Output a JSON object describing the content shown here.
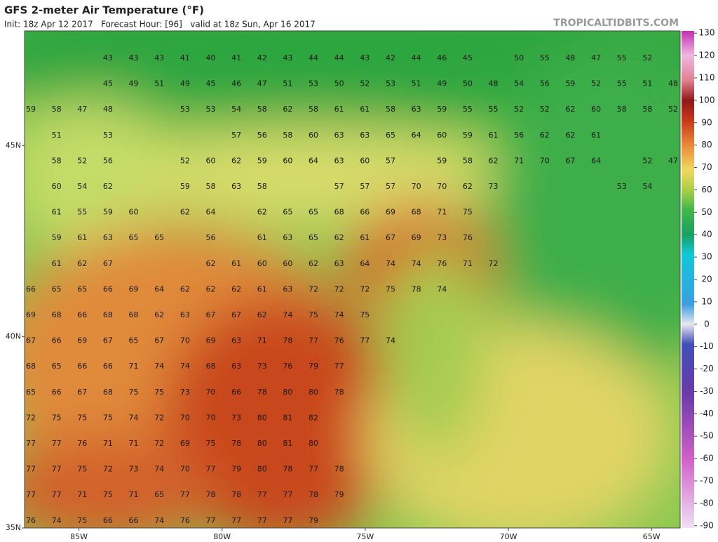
{
  "header": {
    "title": "GFS 2-meter Air Temperature (°F)",
    "subtitle": "Init: 18z Apr 12 2017   Forecast Hour: [96]   valid at 18z Sun, Apr 16 2017",
    "watermark": "TROPICALTIDBITS.COM"
  },
  "map": {
    "xlim": [
      -86.9,
      -64.0
    ],
    "ylim": [
      35.0,
      48.0
    ],
    "xticks": [
      {
        "value": -85,
        "label": "85W"
      },
      {
        "value": -80,
        "label": "80W"
      },
      {
        "value": -75,
        "label": "75W"
      },
      {
        "value": -70,
        "label": "70W"
      },
      {
        "value": -65,
        "label": "65W"
      }
    ],
    "yticks": [
      {
        "value": 45,
        "label": "45N"
      },
      {
        "value": 40,
        "label": "40N"
      },
      {
        "value": 35,
        "label": "35N"
      }
    ],
    "station_rows": [
      [
        null,
        null,
        null,
        43,
        43,
        43,
        41,
        40,
        41,
        42,
        43,
        44,
        44,
        43,
        42,
        44,
        46,
        45,
        null,
        50,
        55,
        48,
        47,
        55,
        52
      ],
      [
        null,
        null,
        null,
        45,
        49,
        51,
        49,
        45,
        46,
        47,
        51,
        53,
        50,
        52,
        53,
        51,
        49,
        50,
        48,
        54,
        56,
        59,
        52,
        55,
        51,
        48
      ],
      [
        59,
        58,
        47,
        48,
        null,
        null,
        53,
        53,
        54,
        58,
        62,
        58,
        61,
        61,
        58,
        63,
        59,
        55,
        55,
        52,
        52,
        62,
        60,
        58,
        58,
        52
      ],
      [
        null,
        51,
        null,
        53,
        null,
        null,
        null,
        null,
        57,
        56,
        58,
        60,
        63,
        63,
        65,
        64,
        60,
        59,
        61,
        56,
        62,
        62,
        61
      ],
      [
        null,
        58,
        52,
        56,
        null,
        null,
        52,
        60,
        62,
        59,
        60,
        64,
        63,
        60,
        57,
        null,
        59,
        58,
        62,
        71,
        70,
        67,
        64,
        null,
        52,
        47
      ],
      [
        null,
        60,
        54,
        62,
        null,
        null,
        59,
        58,
        63,
        58,
        null,
        null,
        57,
        57,
        57,
        70,
        70,
        62,
        73,
        null,
        null,
        null,
        null,
        53,
        54
      ],
      [
        null,
        61,
        55,
        59,
        60,
        null,
        62,
        64,
        null,
        62,
        65,
        65,
        68,
        66,
        69,
        68,
        71,
        75
      ],
      [
        null,
        59,
        61,
        63,
        65,
        65,
        null,
        56,
        null,
        61,
        63,
        65,
        62,
        61,
        67,
        69,
        73,
        76
      ],
      [
        null,
        61,
        62,
        67,
        null,
        null,
        null,
        62,
        61,
        60,
        60,
        62,
        63,
        64,
        74,
        74,
        76,
        71,
        72
      ],
      [
        66,
        65,
        65,
        66,
        69,
        64,
        62,
        62,
        62,
        61,
        63,
        72,
        72,
        72,
        75,
        78,
        74
      ],
      [
        69,
        68,
        66,
        68,
        68,
        62,
        63,
        67,
        67,
        62,
        74,
        75,
        74,
        75
      ],
      [
        67,
        66,
        69,
        67,
        65,
        67,
        70,
        69,
        63,
        71,
        78,
        77,
        76,
        77,
        74
      ],
      [
        68,
        65,
        66,
        66,
        71,
        74,
        74,
        68,
        63,
        73,
        76,
        79,
        77
      ],
      [
        65,
        66,
        67,
        68,
        75,
        75,
        73,
        70,
        66,
        78,
        80,
        80,
        78
      ],
      [
        72,
        75,
        75,
        75,
        74,
        72,
        70,
        70,
        73,
        80,
        81,
        82
      ],
      [
        77,
        77,
        76,
        71,
        71,
        72,
        69,
        75,
        78,
        80,
        81,
        80
      ],
      [
        77,
        77,
        75,
        72,
        73,
        74,
        70,
        77,
        79,
        80,
        78,
        77,
        78
      ],
      [
        77,
        77,
        71,
        75,
        71,
        65,
        77,
        78,
        78,
        77,
        77,
        78,
        79
      ],
      [
        76,
        74,
        75,
        66,
        66,
        74,
        76,
        77,
        77,
        77,
        77,
        79
      ]
    ]
  },
  "colorbar": {
    "lim": [
      -91,
      131
    ],
    "ticks": [
      130,
      120,
      110,
      100,
      90,
      80,
      70,
      60,
      50,
      40,
      30,
      20,
      10,
      0,
      -10,
      -20,
      -30,
      -40,
      -50,
      -60,
      -70,
      -80,
      -90
    ]
  }
}
